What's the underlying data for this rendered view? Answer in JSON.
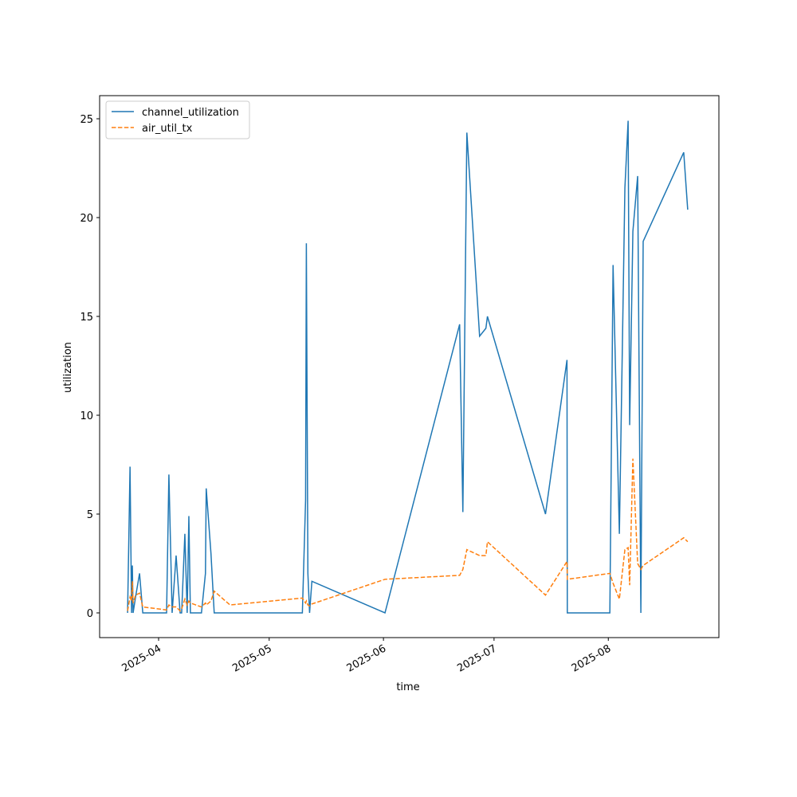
{
  "chart_data": {
    "type": "line",
    "xlabel": "time",
    "ylabel": "utilization",
    "x": [
      "2025-03-23T14:00",
      "2025-03-24T06:00",
      "2025-03-24T16:00",
      "2025-03-24T21:00",
      "2025-03-25T02:00",
      "2025-03-25T18:00",
      "2025-03-26T20:00",
      "2025-03-27T17:00",
      "2025-04-03T04:00",
      "2025-04-03T19:00",
      "2025-04-04T16:00",
      "2025-04-05T18:00",
      "2025-04-06T20:00",
      "2025-04-07T06:00",
      "2025-04-08T03:00",
      "2025-04-08T18:00",
      "2025-04-09T05:00",
      "2025-04-09T15:00",
      "2025-04-12T15:00",
      "2025-04-13T17:00",
      "2025-04-13T22:00",
      "2025-04-15T05:00",
      "2025-04-16T02:00",
      "2025-04-20T09:00",
      "2025-05-10T00:00",
      "2025-05-10T21:00",
      "2025-05-11T02:00",
      "2025-05-11T12:00",
      "2025-05-11T23:00",
      "2025-05-12T14:00",
      "2025-06-01T10:00",
      "2025-06-21T16:00",
      "2025-06-22T13:00",
      "2025-06-23T15:00",
      "2025-06-27T02:00",
      "2025-06-28T19:00",
      "2025-06-29T05:00",
      "2025-07-14T23:00",
      "2025-07-20T19:00",
      "2025-07-20T21:00",
      "2025-08-01T10:00",
      "2025-08-02T07:00",
      "2025-08-04T00:00",
      "2025-08-05T12:00",
      "2025-08-06T09:00",
      "2025-08-06T19:00",
      "2025-08-07T16:00",
      "2025-08-08T23:00",
      "2025-08-09T20:00",
      "2025-08-10T11:00",
      "2025-08-21T11:00",
      "2025-08-22T13:00"
    ],
    "series": [
      {
        "name": "channel_utilization",
        "color": "#1f77b4",
        "dash": "solid",
        "values": [
          0,
          7.4,
          0,
          2.4,
          0,
          0.8,
          2,
          0,
          0,
          7,
          0,
          2.9,
          0,
          0,
          4,
          0,
          4.9,
          0,
          0,
          2,
          6.3,
          3,
          0,
          0,
          0,
          5.7,
          18.7,
          2,
          0,
          1.6,
          0,
          14.6,
          5.1,
          24.3,
          14,
          14.4,
          15,
          5,
          12.8,
          0,
          0,
          17.6,
          4,
          21.5,
          24.9,
          9.5,
          19.3,
          22.1,
          0,
          18.8,
          23.3,
          20.4
        ]
      },
      {
        "name": "air_util_tx",
        "color": "#ff7f0e",
        "dash": "dashed",
        "values": [
          0.1,
          0.8,
          0.6,
          1.6,
          0.5,
          0.9,
          1,
          0.3,
          0.15,
          0.4,
          0.3,
          0.3,
          0.1,
          0.2,
          0.7,
          0.4,
          0.6,
          0.5,
          0.3,
          0.5,
          0.4,
          0.6,
          1.1,
          0.4,
          0.75,
          0.5,
          0.6,
          0.4,
          0.35,
          0.45,
          1.7,
          1.9,
          2.2,
          3.2,
          2.9,
          2.9,
          3.6,
          0.9,
          2.6,
          1.7,
          2,
          1.5,
          0.7,
          3.2,
          3.3,
          1.4,
          7.8,
          2.5,
          2.2,
          2.4,
          3.8,
          3.6
        ]
      }
    ],
    "xlim": [
      "2025-03-16T00:00",
      "2025-08-31T00:00"
    ],
    "xticks": [
      {
        "value": "2025-04-01T00:00",
        "label": "2025-04"
      },
      {
        "value": "2025-05-01T00:00",
        "label": "2025-05"
      },
      {
        "value": "2025-06-01T00:00",
        "label": "2025-06"
      },
      {
        "value": "2025-07-01T00:00",
        "label": "2025-07"
      },
      {
        "value": "2025-08-01T00:00",
        "label": "2025-08"
      }
    ],
    "ylim": [
      -1.25,
      26.17
    ],
    "yticks": [
      0,
      5,
      10,
      15,
      20,
      25
    ],
    "legend": "upper left"
  }
}
